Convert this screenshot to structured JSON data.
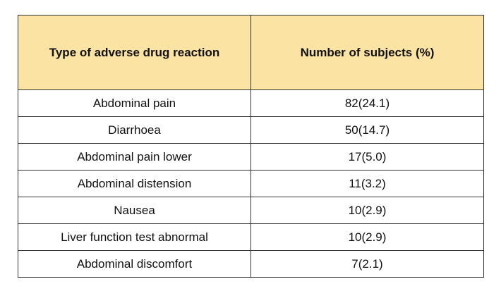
{
  "table": {
    "headers": [
      "Type of adverse drug reaction",
      "Number of subjects (%)"
    ],
    "rows": [
      {
        "reaction": "Abdominal pain",
        "count": "82(24.1)"
      },
      {
        "reaction": "Diarrhoea",
        "count": "50(14.7)"
      },
      {
        "reaction": "Abdominal pain lower",
        "count": "17(5.0)"
      },
      {
        "reaction": "Abdominal distension",
        "count": "11(3.2)"
      },
      {
        "reaction": "Nausea",
        "count": "10(2.9)"
      },
      {
        "reaction": "Liver function test abnormal",
        "count": "10(2.9)"
      },
      {
        "reaction": "Abdominal discomfort",
        "count": "7(2.1)"
      }
    ]
  },
  "colors": {
    "header_bg": "#fbe3a4",
    "border": "#333333"
  }
}
